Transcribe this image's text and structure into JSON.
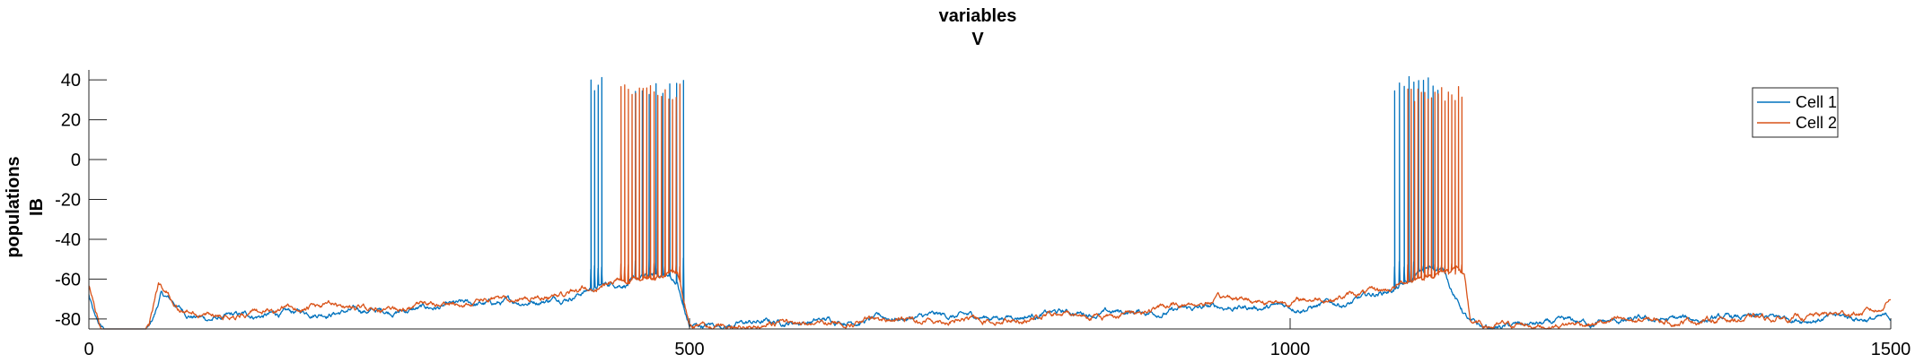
{
  "chart_data": {
    "type": "line",
    "title": [
      "variables",
      "V"
    ],
    "ylabel": [
      "populations",
      "IB"
    ],
    "xlim": [
      0,
      1500
    ],
    "ylim": [
      -85,
      45
    ],
    "x_ticks": [
      0,
      500,
      1000,
      1500
    ],
    "x_tick_labels": [
      "0",
      "500",
      "1000",
      "1500"
    ],
    "y_ticks": [
      -80,
      -60,
      -40,
      -20,
      0,
      20,
      40
    ],
    "y_tick_labels": [
      "-80",
      "-60",
      "-40",
      "-20",
      "0",
      "20",
      "40"
    ],
    "grid": false,
    "legend_position": "top-right",
    "series": [
      {
        "name": "Cell 1",
        "color": "#0072BD",
        "baseline": [
          [
            0,
            -68
          ],
          [
            5,
            -80
          ],
          [
            10,
            -85
          ],
          [
            45,
            -85
          ],
          [
            50,
            -85
          ],
          [
            55,
            -78
          ],
          [
            60,
            -68
          ],
          [
            65,
            -70
          ],
          [
            70,
            -72
          ],
          [
            80,
            -77
          ],
          [
            100,
            -80
          ],
          [
            150,
            -78
          ],
          [
            200,
            -76
          ],
          [
            250,
            -76
          ],
          [
            300,
            -74
          ],
          [
            350,
            -72
          ],
          [
            380,
            -70
          ],
          [
            400,
            -68
          ],
          [
            420,
            -64
          ],
          [
            440,
            -62
          ],
          [
            460,
            -60
          ],
          [
            480,
            -58
          ],
          [
            490,
            -62
          ],
          [
            495,
            -75
          ],
          [
            500,
            -84
          ],
          [
            550,
            -82
          ],
          [
            600,
            -81
          ],
          [
            650,
            -80
          ],
          [
            700,
            -79
          ],
          [
            750,
            -79
          ],
          [
            800,
            -77
          ],
          [
            850,
            -77
          ],
          [
            900,
            -76
          ],
          [
            950,
            -74
          ],
          [
            1000,
            -74
          ],
          [
            1050,
            -72
          ],
          [
            1080,
            -66
          ],
          [
            1100,
            -62
          ],
          [
            1110,
            -56
          ],
          [
            1125,
            -54
          ],
          [
            1130,
            -58
          ],
          [
            1140,
            -72
          ],
          [
            1150,
            -82
          ],
          [
            1160,
            -85
          ],
          [
            1200,
            -83
          ],
          [
            1250,
            -82
          ],
          [
            1300,
            -81
          ],
          [
            1350,
            -80
          ],
          [
            1400,
            -80
          ],
          [
            1450,
            -79
          ],
          [
            1500,
            -80
          ]
        ],
        "bursts": [
          {
            "start": 418,
            "end": 427,
            "count": 4,
            "peak": 42,
            "trough": -56
          },
          {
            "start": 455,
            "end": 495,
            "count": 8,
            "peak": 40,
            "trough": -52
          },
          {
            "start": 1087,
            "end": 1123,
            "count": 10,
            "peak": 42,
            "trough": -54
          }
        ]
      },
      {
        "name": "Cell 2",
        "color": "#D95319",
        "baseline": [
          [
            0,
            -64
          ],
          [
            5,
            -75
          ],
          [
            10,
            -85
          ],
          [
            45,
            -85
          ],
          [
            50,
            -85
          ],
          [
            55,
            -70
          ],
          [
            58,
            -63
          ],
          [
            65,
            -66
          ],
          [
            75,
            -74
          ],
          [
            100,
            -78
          ],
          [
            150,
            -76
          ],
          [
            200,
            -74
          ],
          [
            250,
            -75
          ],
          [
            300,
            -73
          ],
          [
            350,
            -70
          ],
          [
            400,
            -67
          ],
          [
            420,
            -64
          ],
          [
            430,
            -62
          ],
          [
            440,
            -60
          ],
          [
            490,
            -56
          ],
          [
            495,
            -70
          ],
          [
            500,
            -84
          ],
          [
            550,
            -83
          ],
          [
            600,
            -82
          ],
          [
            650,
            -81
          ],
          [
            700,
            -80
          ],
          [
            750,
            -80
          ],
          [
            800,
            -78
          ],
          [
            850,
            -78
          ],
          [
            900,
            -74
          ],
          [
            950,
            -70
          ],
          [
            1000,
            -71
          ],
          [
            1050,
            -68
          ],
          [
            1080,
            -66
          ],
          [
            1100,
            -60
          ],
          [
            1140,
            -54
          ],
          [
            1145,
            -60
          ],
          [
            1150,
            -82
          ],
          [
            1160,
            -84
          ],
          [
            1200,
            -83
          ],
          [
            1250,
            -82
          ],
          [
            1300,
            -81
          ],
          [
            1350,
            -80
          ],
          [
            1400,
            -80
          ],
          [
            1450,
            -78
          ],
          [
            1490,
            -76
          ],
          [
            1500,
            -68
          ]
        ],
        "bursts": [
          {
            "start": 443,
            "end": 492,
            "count": 17,
            "peak": 38,
            "trough": -55
          },
          {
            "start": 1098,
            "end": 1143,
            "count": 17,
            "peak": 37,
            "trough": -55
          }
        ]
      }
    ]
  }
}
